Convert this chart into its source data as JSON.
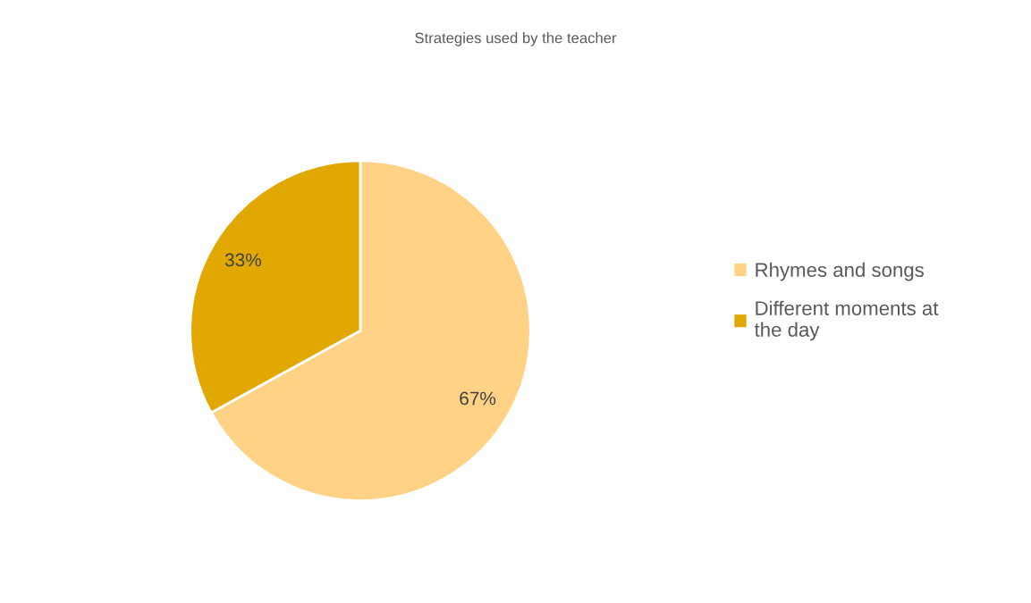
{
  "chart_data": {
    "type": "pie",
    "title": "Strategies used by the teacher",
    "categories": [
      "Rhymes and songs",
      "Different moments at the day"
    ],
    "values": [
      67,
      33
    ],
    "colors": [
      "#ffd285",
      "#e0a800"
    ],
    "value_labels": [
      "67%",
      "33%"
    ],
    "legend": "right"
  }
}
